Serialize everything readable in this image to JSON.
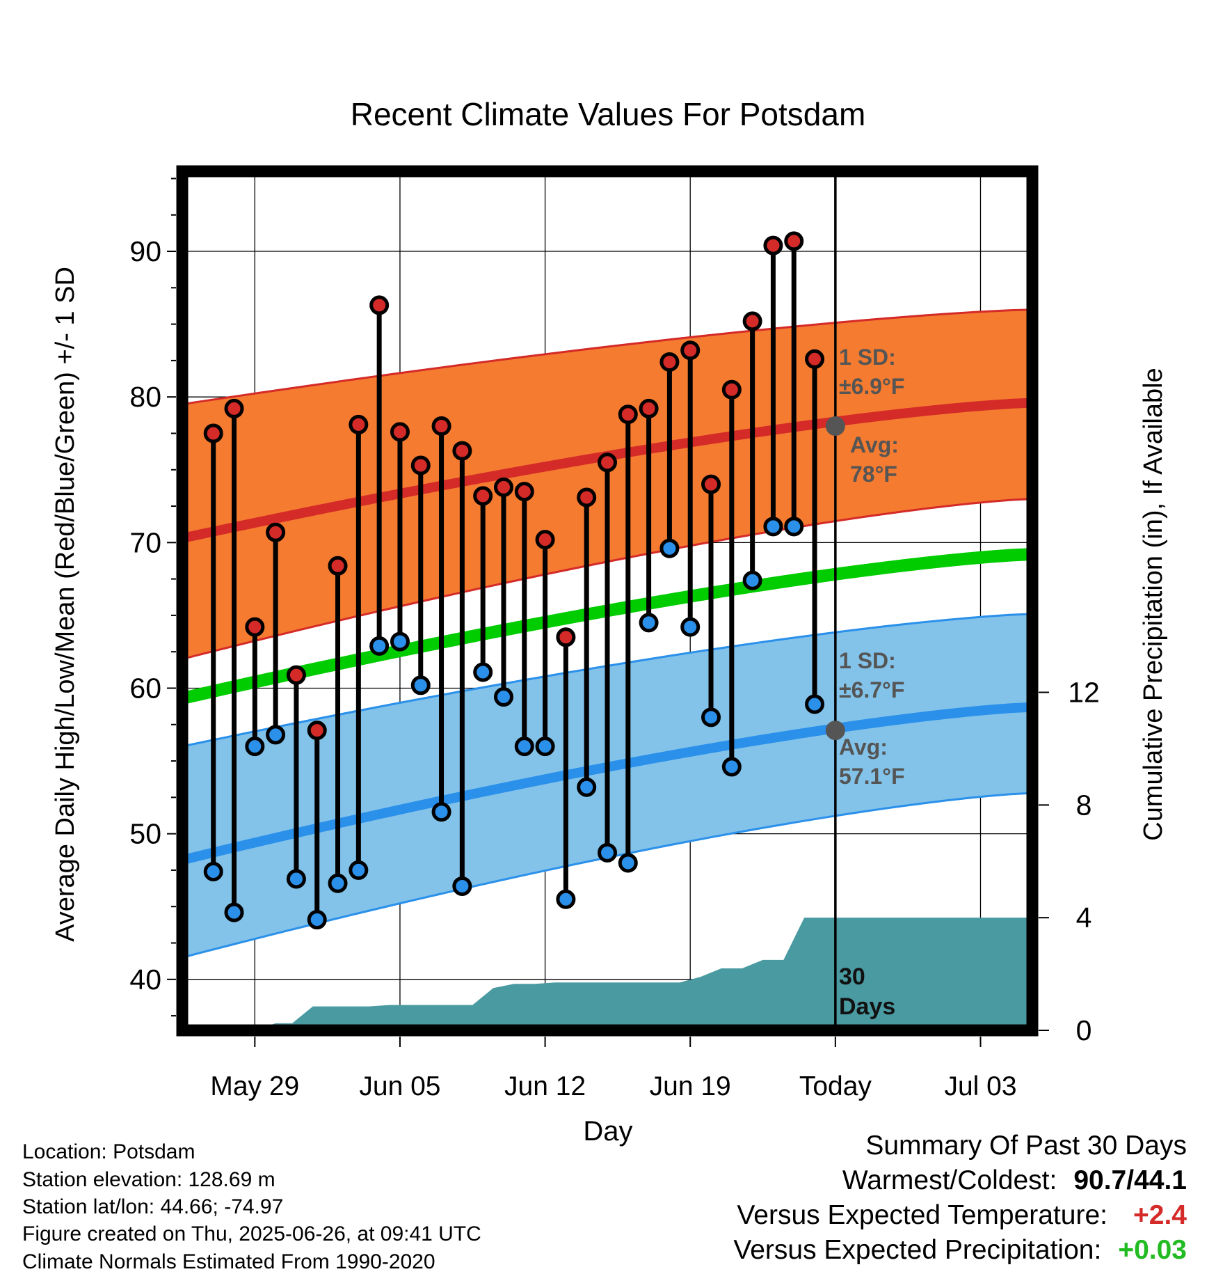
{
  "chart_data": {
    "type": "line",
    "title": "Recent Climate Values For Potsdam",
    "xlabel": "Day",
    "ylabel": "Average Daily High/Low/Mean (Red/Blue/Green) +/- 1 SD",
    "y2label": "Cumulative Precipitation (in), If Available",
    "ylim": [
      36.5,
      95.5
    ],
    "y2lim": [
      0,
      30.5
    ],
    "yticks": [
      "40",
      "50",
      "60",
      "70",
      "80",
      "90"
    ],
    "y2ticks": [
      "0",
      "4",
      "8",
      "12"
    ],
    "xlim": [
      -3.5,
      37.5
    ],
    "xticks": [
      {
        "x": 0,
        "label": "May 29"
      },
      {
        "x": 7,
        "label": "Jun 05"
      },
      {
        "x": 14,
        "label": "Jun 12"
      },
      {
        "x": 21,
        "label": "Jun 19"
      },
      {
        "x": 28,
        "label": "Today"
      },
      {
        "x": 35,
        "label": "Jul 03"
      }
    ],
    "days": [
      -2,
      -1,
      0,
      1,
      2,
      3,
      4,
      5,
      6,
      7,
      8,
      9,
      10,
      11,
      12,
      13,
      14,
      15,
      16,
      17,
      18,
      19,
      20,
      21,
      22,
      23,
      24,
      25,
      26,
      27
    ],
    "series": [
      {
        "name": "High",
        "color": "#d42a28",
        "values": [
          77.5,
          79.2,
          64.2,
          70.7,
          60.9,
          57.1,
          68.4,
          78.1,
          86.3,
          77.6,
          75.3,
          78.0,
          76.3,
          73.2,
          73.8,
          73.5,
          70.2,
          63.5,
          73.1,
          75.5,
          78.8,
          79.2,
          82.4,
          83.2,
          74.0,
          80.5,
          85.2,
          90.4,
          90.7,
          82.6
        ]
      },
      {
        "name": "Low",
        "color": "#2a90ea",
        "values": [
          47.4,
          44.6,
          56.0,
          56.8,
          46.9,
          44.1,
          46.6,
          47.5,
          62.9,
          63.2,
          60.2,
          51.5,
          46.4,
          61.1,
          59.4,
          56.0,
          56.0,
          45.5,
          53.2,
          48.7,
          48.0,
          64.5,
          69.6,
          64.2,
          58.0,
          54.6,
          67.4,
          71.1,
          71.1,
          58.9
        ]
      }
    ],
    "normals": {
      "x": [
        -3.5,
        37.5
      ],
      "high_avg": [
        70.3,
        79.6
      ],
      "high_sd_lower": [
        62.0,
        73.0
      ],
      "high_sd_upper": [
        79.5,
        86.0
      ],
      "low_avg": [
        48.2,
        58.7
      ],
      "low_sd_lower": [
        41.5,
        52.8
      ],
      "low_sd_upper": [
        56.0,
        65.1
      ],
      "mean": [
        59.3,
        69.2
      ]
    },
    "precipitation": {
      "x": [
        -3.5,
        0,
        1,
        1.8,
        2.8,
        3.5,
        4.5,
        5.5,
        6.5,
        7.5,
        8.5,
        9.5,
        10.5,
        11.5,
        12.5,
        13.5,
        14.5,
        15.5,
        16.5,
        17.5,
        18.5,
        19.5,
        20.5,
        21.5,
        22.5,
        23.5,
        24.5,
        25.5,
        26.5,
        27.5,
        37.5
      ],
      "values": [
        0.0,
        0.0,
        0.25,
        0.25,
        0.85,
        0.85,
        0.85,
        0.85,
        0.9,
        0.9,
        0.9,
        0.9,
        0.9,
        1.5,
        1.65,
        1.65,
        1.7,
        1.7,
        1.7,
        1.7,
        1.7,
        1.7,
        1.7,
        1.9,
        2.2,
        2.2,
        2.5,
        2.5,
        4.0,
        4.0,
        4.0
      ]
    },
    "annotations": {
      "high_sd": "1 SD:",
      "high_sd_val": "±6.9°F",
      "high_avg": "Avg:",
      "high_avg_val": "78°F",
      "low_sd": "1 SD:",
      "low_sd_val": "±6.7°F",
      "low_avg": "Avg:",
      "low_avg_val": "57.1°F",
      "window_line1": "30",
      "window_line2": "Days"
    },
    "today_high_avg": 78.0,
    "today_low_avg": 57.1,
    "colors": {
      "high_band": "#f47b30",
      "high_line": "#d42a28",
      "low_band": "#83c3ea",
      "low_line": "#2a90ea",
      "mean_line": "#00cc00",
      "precip": "#4a9aa2",
      "annotation": "#555555"
    },
    "grid": true
  },
  "info": {
    "location": "Location: Potsdam",
    "elevation": "Station elevation: 128.69 m",
    "latlon": "Station lat/lon: 44.66; -74.97",
    "created": "Figure created on Thu, 2025-06-26, at 09:41 UTC",
    "normals": "Climate Normals Estimated From 1990-2020"
  },
  "summary": {
    "title": "Summary Of Past 30 Days",
    "warmest_label": "Warmest/Coldest:",
    "warmest_value": "90.7/44.1",
    "temp_label": "Versus Expected Temperature:",
    "temp_value": "+2.4",
    "temp_color": "#d42a28",
    "precip_label": "Versus Expected Precipitation:",
    "precip_value": "+0.03",
    "precip_color": "#22bb22"
  }
}
